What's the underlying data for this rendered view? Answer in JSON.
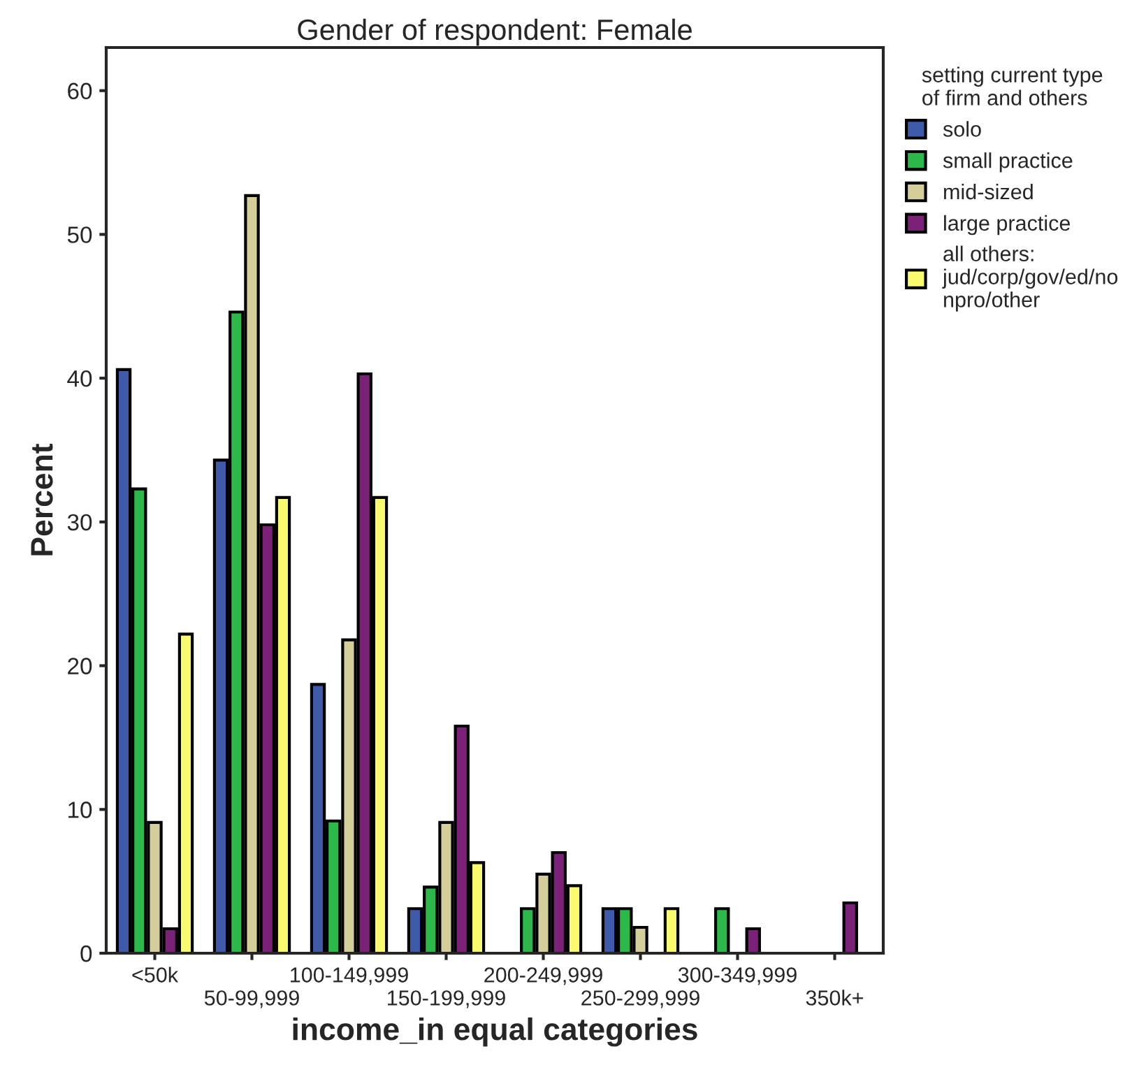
{
  "chart_data": {
    "type": "bar",
    "title": "Gender of respondent: Female",
    "xlabel": "income_in equal categories",
    "ylabel": "Percent",
    "legend_title": "setting current type\nof firm and others",
    "categories": [
      "<50k",
      "50-99,999",
      "100-149,999",
      "150-199,999",
      "200-249,999",
      "250-299,999",
      "300-349,999",
      "350k+"
    ],
    "series": [
      {
        "name": "solo",
        "color": "#3f5aa8",
        "values": [
          40.6,
          34.3,
          18.7,
          3.1,
          null,
          3.1,
          null,
          null
        ]
      },
      {
        "name": "small practice",
        "color": "#2db84a",
        "values": [
          32.3,
          44.6,
          9.2,
          4.6,
          3.1,
          3.1,
          3.1,
          null
        ]
      },
      {
        "name": "mid-sized",
        "color": "#d4cf9a",
        "values": [
          9.1,
          52.7,
          21.8,
          9.1,
          5.5,
          1.8,
          null,
          null
        ]
      },
      {
        "name": "large practice",
        "color": "#7b2278",
        "values": [
          1.7,
          29.8,
          40.3,
          15.8,
          7.0,
          null,
          1.7,
          3.5
        ]
      },
      {
        "name": "all others: jud/corp/gov/ed/nonpro/other",
        "color": "#fafa6e",
        "values": [
          22.2,
          31.7,
          31.7,
          6.3,
          4.7,
          3.1,
          null,
          null
        ]
      }
    ],
    "ylim": [
      0,
      63
    ],
    "yticks": [
      0,
      10,
      20,
      30,
      40,
      50,
      60
    ],
    "grid": false,
    "legend": "top right"
  }
}
